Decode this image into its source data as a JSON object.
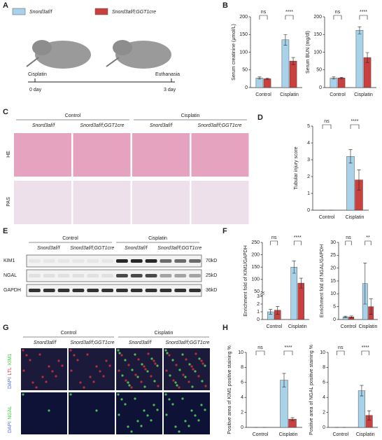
{
  "panel_labels": [
    "A",
    "B",
    "C",
    "D",
    "E",
    "F",
    "G",
    "H"
  ],
  "legend": [
    {
      "name": "Snord3af/f",
      "color": "#a8d2ea"
    },
    {
      "name": "Snord3af/f;GGT1cre",
      "color": "#c9403e"
    }
  ],
  "timeline": {
    "start_label": "Cisplatin",
    "start_day": "0 day",
    "end_label": "Euthanasia",
    "end_day": "3 day"
  },
  "histology": {
    "groups": [
      "Control",
      "Cisplatin"
    ],
    "columns": [
      "Snord3af/f",
      "Snord3af/f;GGT1cre",
      "Snord3af/f",
      "Snord3af/f;GGT1cre"
    ],
    "rows": [
      "HE",
      "PAS"
    ]
  },
  "western": {
    "groups": [
      "Control",
      "Cisplatin"
    ],
    "columns": [
      "Snord3af/f",
      "Snord3af/f;GGT1cre",
      "Snord3af/f",
      "Snord3af/f;GGT1cre"
    ],
    "proteins": [
      "KIM1",
      "NGAL",
      "GAPDH"
    ],
    "sizes": [
      "70kD",
      "25kD",
      "36kD"
    ]
  },
  "staining": {
    "groups": [
      "Control",
      "Cisplatin"
    ],
    "columns": [
      "Snord3af/f",
      "Snord3af/f;GGT1cre",
      "Snord3af/f",
      "Snord3af/f;GGT1cre"
    ],
    "rows": [
      [
        "DAPI",
        "LTL",
        "KIM1"
      ],
      [
        "DAPI",
        "NGAL"
      ]
    ]
  },
  "chart_data": [
    {
      "type": "bar",
      "ylabel": "Serum creatinine (μmol/L)",
      "categories": [
        "Control",
        "Cisplatin"
      ],
      "series": [
        {
          "values": [
            27,
            135
          ],
          "errors": [
            3,
            15
          ]
        },
        {
          "values": [
            25,
            75
          ],
          "errors": [
            2,
            10
          ]
        }
      ],
      "ylim": [
        0,
        200
      ],
      "yticks": [
        0,
        50,
        100,
        150,
        200
      ],
      "annotations": [
        "ns",
        "****"
      ]
    },
    {
      "type": "bar",
      "ylabel": "Serum BUN (mg/dl)",
      "categories": [
        "Control",
        "Cisplatin"
      ],
      "series": [
        {
          "values": [
            27,
            162
          ],
          "errors": [
            3,
            10
          ]
        },
        {
          "values": [
            27,
            85
          ],
          "errors": [
            2,
            14
          ]
        }
      ],
      "ylim": [
        0,
        200
      ],
      "yticks": [
        0,
        50,
        100,
        150,
        200
      ],
      "annotations": [
        "ns",
        "****"
      ]
    },
    {
      "type": "bar",
      "ylabel": "Tubular injury score",
      "categories": [
        "Control",
        "Cisplatin"
      ],
      "series": [
        {
          "values": [
            0,
            3.2
          ],
          "errors": [
            0,
            0.4
          ]
        },
        {
          "values": [
            0,
            1.8
          ],
          "errors": [
            0,
            0.6
          ]
        }
      ],
      "ylim": [
        0,
        5
      ],
      "yticks": [
        0,
        1,
        2,
        3,
        4,
        5
      ],
      "annotations": [
        "ns",
        "****"
      ]
    },
    {
      "type": "bar",
      "ylabel": "Enrichment fold of KIM1/GAPDH",
      "categories": [
        "Control",
        "Cisplatin"
      ],
      "series": [
        {
          "values": [
            1.0,
            150
          ],
          "errors": [
            0.3,
            25
          ]
        },
        {
          "values": [
            1.2,
            85
          ],
          "errors": [
            0.5,
            20
          ]
        }
      ],
      "ylim": [
        0,
        250
      ],
      "ybreak": [
        3,
        50
      ],
      "yticks": [
        0,
        1,
        2,
        3,
        50,
        100,
        150,
        200,
        250
      ],
      "annotations": [
        "ns",
        "****"
      ]
    },
    {
      "type": "bar",
      "ylabel": "Enrichment fold of NGAL/GAPDH",
      "categories": [
        "Control",
        "Cisplatin"
      ],
      "series": [
        {
          "values": [
            1,
            14
          ],
          "errors": [
            0.3,
            8
          ]
        },
        {
          "values": [
            1,
            5
          ],
          "errors": [
            0.4,
            3
          ]
        }
      ],
      "ylim": [
        0,
        30
      ],
      "yticks": [
        0,
        5,
        10,
        15,
        20,
        25,
        30
      ],
      "annotations": [
        "ns",
        "**"
      ]
    },
    {
      "type": "bar",
      "ylabel": "Positive area of KIM1 positive staining %",
      "categories": [
        "Control",
        "Cisplatin"
      ],
      "series": [
        {
          "values": [
            0,
            6.3
          ],
          "errors": [
            0,
            0.9
          ]
        },
        {
          "values": [
            0,
            1.1
          ],
          "errors": [
            0,
            0.2
          ]
        }
      ],
      "ylim": [
        0,
        10
      ],
      "yticks": [
        0,
        2,
        4,
        6,
        8,
        10
      ],
      "annotations": [
        "ns",
        "****"
      ]
    },
    {
      "type": "bar",
      "ylabel": "Positive area of NGAL positive staining %",
      "categories": [
        "Control",
        "Cisplatin"
      ],
      "series": [
        {
          "values": [
            0,
            4.9
          ],
          "errors": [
            0,
            0.7
          ]
        },
        {
          "values": [
            0,
            1.6
          ],
          "errors": [
            0,
            0.6
          ]
        }
      ],
      "ylim": [
        0,
        10
      ],
      "yticks": [
        0,
        2,
        4,
        6,
        8,
        10
      ],
      "annotations": [
        "ns",
        "****"
      ]
    }
  ]
}
